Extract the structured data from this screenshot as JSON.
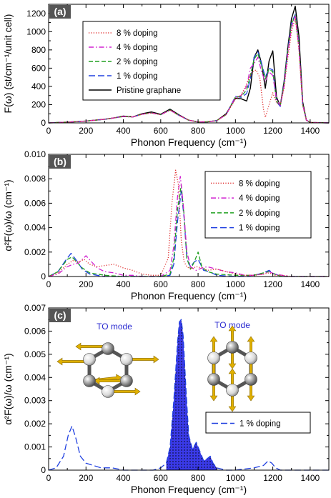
{
  "chart_data": [
    {
      "type": "line",
      "panel_label": "(a)",
      "xlabel": "Phonon Frequency (cm⁻¹)",
      "ylabel": "F(ω) (st/cm⁻¹/unit cell)",
      "xlim": [
        0,
        1500
      ],
      "ylim": [
        0,
        1300
      ],
      "xticks": [
        0,
        200,
        400,
        600,
        800,
        1000,
        1200,
        1400
      ],
      "yticks": [
        0,
        200,
        400,
        600,
        800,
        1000,
        1200
      ],
      "grid": false,
      "legend_position": "top-center",
      "series": [
        {
          "name": "8 % doping",
          "color": "#e03030",
          "dash": "dotted",
          "x": [
            0,
            100,
            200,
            300,
            350,
            400,
            450,
            500,
            550,
            600,
            650,
            700,
            750,
            800,
            850,
            900,
            950,
            1000,
            1030,
            1060,
            1090,
            1110,
            1130,
            1150,
            1160,
            1180,
            1200,
            1220,
            1240,
            1260,
            1280,
            1300,
            1320,
            1340,
            1360,
            1380,
            1400,
            1500
          ],
          "y": [
            0,
            8,
            20,
            40,
            55,
            70,
            65,
            95,
            110,
            90,
            140,
            80,
            30,
            10,
            12,
            25,
            90,
            260,
            300,
            430,
            560,
            580,
            500,
            150,
            60,
            200,
            330,
            220,
            200,
            380,
            700,
            1000,
            1150,
            800,
            200,
            30,
            5,
            0
          ]
        },
        {
          "name": "4 % doping",
          "color": "#d020d0",
          "dash": "dashdot",
          "x": [
            0,
            100,
            200,
            300,
            350,
            400,
            450,
            500,
            550,
            600,
            650,
            700,
            750,
            800,
            850,
            900,
            950,
            1000,
            1030,
            1060,
            1080,
            1100,
            1120,
            1140,
            1160,
            1180,
            1200,
            1220,
            1240,
            1260,
            1280,
            1300,
            1320,
            1340,
            1360,
            1380,
            1400,
            1500
          ],
          "y": [
            0,
            8,
            20,
            40,
            55,
            70,
            65,
            95,
            110,
            90,
            140,
            80,
            30,
            10,
            12,
            25,
            90,
            280,
            300,
            400,
            600,
            650,
            720,
            560,
            450,
            560,
            520,
            260,
            190,
            400,
            760,
            1050,
            1170,
            820,
            200,
            30,
            5,
            0
          ]
        },
        {
          "name": "2 % doping",
          "color": "#20a020",
          "dash": "dashed",
          "x": [
            0,
            100,
            200,
            300,
            350,
            400,
            450,
            500,
            550,
            600,
            650,
            700,
            750,
            800,
            850,
            900,
            950,
            1000,
            1030,
            1060,
            1080,
            1100,
            1120,
            1140,
            1160,
            1180,
            1200,
            1220,
            1240,
            1260,
            1280,
            1300,
            1320,
            1340,
            1360,
            1380,
            1400,
            1500
          ],
          "y": [
            0,
            8,
            20,
            40,
            55,
            70,
            65,
            95,
            110,
            90,
            140,
            80,
            30,
            10,
            12,
            25,
            90,
            285,
            290,
            360,
            520,
            700,
            760,
            620,
            480,
            590,
            560,
            240,
            190,
            420,
            780,
            1080,
            1180,
            830,
            200,
            30,
            5,
            0
          ]
        },
        {
          "name": "1 % doping",
          "color": "#2040e0",
          "dash": "longdash",
          "x": [
            0,
            100,
            200,
            300,
            350,
            400,
            450,
            500,
            550,
            600,
            650,
            700,
            750,
            800,
            850,
            900,
            950,
            1000,
            1030,
            1060,
            1080,
            1100,
            1120,
            1140,
            1160,
            1180,
            1200,
            1220,
            1240,
            1260,
            1280,
            1300,
            1320,
            1340,
            1360,
            1380,
            1400,
            1500
          ],
          "y": [
            0,
            8,
            20,
            40,
            55,
            70,
            65,
            95,
            110,
            90,
            140,
            80,
            30,
            10,
            12,
            25,
            90,
            290,
            280,
            320,
            480,
            720,
            780,
            650,
            500,
            600,
            580,
            230,
            180,
            430,
            790,
            1090,
            1190,
            840,
            200,
            30,
            5,
            0
          ]
        },
        {
          "name": "Pristine graphane",
          "color": "#000000",
          "dash": "solid",
          "x": [
            0,
            100,
            200,
            300,
            350,
            400,
            450,
            500,
            550,
            600,
            650,
            700,
            750,
            800,
            850,
            900,
            950,
            1000,
            1030,
            1060,
            1080,
            1100,
            1120,
            1140,
            1160,
            1180,
            1200,
            1220,
            1240,
            1260,
            1280,
            1300,
            1320,
            1340,
            1360,
            1380,
            1400,
            1500
          ],
          "y": [
            0,
            8,
            20,
            40,
            55,
            75,
            65,
            100,
            120,
            95,
            150,
            85,
            30,
            10,
            12,
            25,
            100,
            270,
            265,
            240,
            380,
            720,
            800,
            650,
            380,
            680,
            790,
            280,
            190,
            450,
            820,
            1140,
            1280,
            950,
            230,
            30,
            5,
            0
          ]
        }
      ]
    },
    {
      "type": "line",
      "panel_label": "(b)",
      "xlabel": "Phonon Frequency (cm⁻¹)",
      "ylabel": "α²F(ω)/ω (cm⁻¹)",
      "xlim": [
        0,
        1500
      ],
      "ylim": [
        0,
        0.01
      ],
      "xticks": [
        0,
        200,
        400,
        600,
        800,
        1000,
        1200,
        1400
      ],
      "yticks": [
        0,
        0.002,
        0.004,
        0.006,
        0.008,
        0.01
      ],
      "ytick_labels": [
        "0",
        "0.002",
        "0.004",
        "0.006",
        "0.008",
        "0.010"
      ],
      "grid": false,
      "legend_position": "top-right",
      "series": [
        {
          "name": "8 % doping",
          "color": "#e03030",
          "dash": "dotted",
          "x": [
            0,
            50,
            100,
            130,
            160,
            190,
            220,
            260,
            300,
            350,
            400,
            450,
            500,
            550,
            600,
            640,
            660,
            680,
            695,
            710,
            725,
            740,
            760,
            790,
            820,
            850,
            900,
            950,
            1000,
            1050,
            1100,
            1150,
            1180,
            1210,
            1250,
            1300,
            1400,
            1500
          ],
          "y": [
            0,
            0.0003,
            0.001,
            0.0013,
            0.0012,
            0.0014,
            0.001,
            0.0008,
            0.0009,
            0.001,
            0.0007,
            0.0005,
            0.0002,
            0.0001,
            0.0001,
            0.0015,
            0.006,
            0.0087,
            0.0075,
            0.003,
            0.0012,
            0.0008,
            0.0006,
            0.0008,
            0.0007,
            0.0005,
            0.0006,
            0.0004,
            0.0002,
            0.0001,
            0.0001,
            0.0002,
            0.0003,
            0.0001,
            0.0001,
            0,
            0,
            0
          ]
        },
        {
          "name": "4 % doping",
          "color": "#d020d0",
          "dash": "dashdot",
          "x": [
            0,
            50,
            100,
            130,
            160,
            200,
            230,
            260,
            300,
            350,
            400,
            450,
            500,
            600,
            650,
            670,
            690,
            705,
            720,
            740,
            760,
            790,
            820,
            850,
            900,
            950,
            1000,
            1050,
            1100,
            1150,
            1180,
            1210,
            1250,
            1300,
            1400,
            1500
          ],
          "y": [
            0,
            0.0002,
            0.0008,
            0.001,
            0.0011,
            0.0017,
            0.0012,
            0.0007,
            0.0004,
            0.0003,
            0.0001,
            0.0001,
            0,
            0,
            0.0005,
            0.0025,
            0.0065,
            0.0082,
            0.006,
            0.002,
            0.0008,
            0.0005,
            0.0007,
            0.0008,
            0.0006,
            0.0004,
            0.0003,
            0.0001,
            0.0001,
            0.0002,
            0.0004,
            0.0002,
            0.0001,
            0,
            0,
            0
          ]
        },
        {
          "name": "2 % doping",
          "color": "#20a020",
          "dash": "dashed",
          "x": [
            0,
            50,
            100,
            125,
            150,
            180,
            220,
            260,
            300,
            400,
            500,
            600,
            650,
            670,
            690,
            710,
            725,
            740,
            760,
            780,
            800,
            820,
            850,
            900,
            1000,
            1100,
            1150,
            1180,
            1210,
            1250,
            1300,
            1500
          ],
          "y": [
            0,
            0.0004,
            0.0014,
            0.0016,
            0.0012,
            0.0007,
            0.0003,
            0.0002,
            0.0001,
            0,
            0,
            0,
            0.0002,
            0.0015,
            0.0055,
            0.0075,
            0.005,
            0.0015,
            0.0006,
            0.0012,
            0.002,
            0.0008,
            0.0004,
            0.0002,
            0.0001,
            0.0001,
            0.0003,
            0.0004,
            0.0002,
            0,
            0,
            0
          ]
        },
        {
          "name": "1 % doping",
          "color": "#2040e0",
          "dash": "longdash",
          "x": [
            0,
            50,
            90,
            120,
            150,
            180,
            220,
            260,
            300,
            400,
            500,
            600,
            650,
            670,
            690,
            710,
            725,
            740,
            760,
            780,
            800,
            830,
            860,
            900,
            1000,
            1100,
            1150,
            1180,
            1210,
            1250,
            1300,
            1500
          ],
          "y": [
            0,
            0.0004,
            0.0013,
            0.0019,
            0.0013,
            0.0006,
            0.0002,
            0.0001,
            0,
            0,
            0,
            0,
            0.0001,
            0.001,
            0.0045,
            0.007,
            0.0048,
            0.0014,
            0.0008,
            0.0012,
            0.0014,
            0.0005,
            0.0004,
            0.0001,
            0,
            0.0001,
            0.0003,
            0.0005,
            0.0002,
            0,
            0,
            0
          ]
        }
      ]
    },
    {
      "type": "area",
      "panel_label": "(c)",
      "xlabel": "Phonon Frequency (cm⁻¹)",
      "ylabel": "α²F(ω)/ω (cm⁻¹)",
      "xlim": [
        0,
        1500
      ],
      "ylim": [
        0,
        0.007
      ],
      "xticks": [
        0,
        200,
        400,
        600,
        800,
        1000,
        1200,
        1400
      ],
      "yticks": [
        0,
        0.001,
        0.002,
        0.003,
        0.004,
        0.005,
        0.006,
        0.007
      ],
      "ytick_labels": [
        "0",
        "0.001",
        "0.002",
        "0.003",
        "0.004",
        "0.005",
        "0.006",
        "0.007"
      ],
      "grid": false,
      "legend_position": "bottom-right",
      "shaded_range": [
        620,
        900
      ],
      "annotations": [
        "TO mode",
        "TO mode"
      ],
      "series": [
        {
          "name": "1 % doping",
          "color": "#2040e0",
          "dash": "longdash",
          "x": [
            0,
            40,
            80,
            105,
            125,
            145,
            170,
            200,
            240,
            280,
            340,
            400,
            480,
            560,
            600,
            630,
            650,
            670,
            690,
            700,
            710,
            720,
            735,
            750,
            770,
            790,
            810,
            830,
            850,
            865,
            880,
            900,
            950,
            1000,
            1100,
            1150,
            1175,
            1195,
            1215,
            1240,
            1300,
            1500
          ],
          "y": [
            0,
            0.0001,
            0.0006,
            0.0015,
            0.0019,
            0.0014,
            0.0006,
            0.0003,
            0.0002,
            0.0001,
            0.0001,
            0,
            0,
            0,
            0.0001,
            0.0003,
            0.001,
            0.003,
            0.0055,
            0.0064,
            0.0065,
            0.0058,
            0.0035,
            0.0015,
            0.0009,
            0.0012,
            0.0008,
            0.0004,
            0.0005,
            0.0006,
            0.0003,
            0.0001,
            0,
            0,
            0.0001,
            0.0002,
            0.0004,
            0.0003,
            0.0001,
            0,
            0,
            0
          ]
        }
      ]
    }
  ]
}
